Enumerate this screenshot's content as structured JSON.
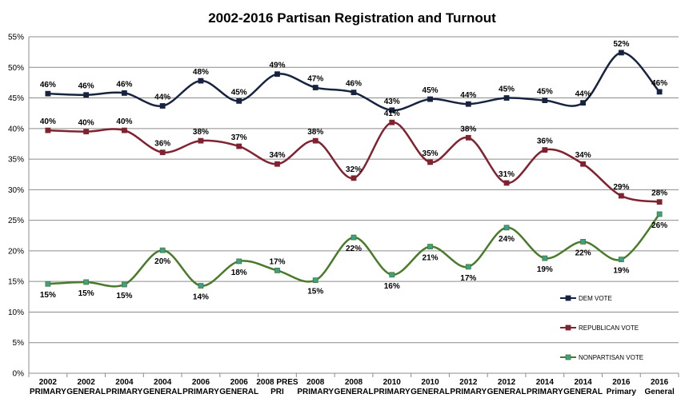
{
  "chart_data": {
    "type": "line",
    "title": "2002-2016 Partisan Registration and Turnout",
    "xlabel": "",
    "ylabel": "",
    "ylim": [
      0,
      55
    ],
    "y_tick_step": 5,
    "y_tick_labels": [
      "0%",
      "5%",
      "10%",
      "15%",
      "20%",
      "25%",
      "30%",
      "35%",
      "40%",
      "45%",
      "50%",
      "55%"
    ],
    "grid": true,
    "legend_position": "bottom-right",
    "categories": [
      [
        "2002",
        "PRIMARY"
      ],
      [
        "2002",
        "GENERAL"
      ],
      [
        "2004",
        "PRIMARY"
      ],
      [
        "2004",
        "GENERAL"
      ],
      [
        "2006",
        "PRIMARY"
      ],
      [
        "2006",
        "GENERAL"
      ],
      [
        "2008 PRES",
        "PRI"
      ],
      [
        "2008",
        "PRIMARY"
      ],
      [
        "2008",
        "GENERAL"
      ],
      [
        "2010",
        "PRIMARY"
      ],
      [
        "2010",
        "GENERAL"
      ],
      [
        "2012",
        "PRIMARY"
      ],
      [
        "2012",
        "GENERAL"
      ],
      [
        "2014",
        "PRIMARY"
      ],
      [
        "2014",
        "GENERAL"
      ],
      [
        "2016",
        "Primary"
      ],
      [
        "2016",
        "General"
      ]
    ],
    "series": [
      {
        "name": "DEM VOTE",
        "color": "#17233f",
        "values": [
          45.7,
          45.5,
          45.8,
          43.7,
          47.8,
          44.5,
          48.9,
          46.7,
          45.9,
          43.0,
          44.8,
          44.0,
          45.0,
          44.6,
          44.2,
          52.4,
          46.0
        ],
        "labels": [
          "46%",
          "46%",
          "46%",
          "44%",
          "48%",
          "45%",
          "49%",
          "47%",
          "46%",
          "43%",
          "45%",
          "44%",
          "45%",
          "45%",
          "44%",
          "52%",
          "46%"
        ],
        "label_side": [
          "above",
          "above",
          "above",
          "above",
          "above",
          "above",
          "above",
          "above",
          "above",
          "above",
          "above",
          "above",
          "above",
          "above",
          "above",
          "above",
          "above"
        ]
      },
      {
        "name": "REPUBLICAN VOTE",
        "color": "#7f2330",
        "values": [
          39.7,
          39.5,
          39.7,
          36.1,
          38.0,
          37.1,
          34.2,
          38.0,
          31.9,
          41.0,
          34.5,
          38.5,
          31.1,
          36.5,
          34.2,
          29.0,
          28.0
        ],
        "labels": [
          "40%",
          "40%",
          "40%",
          "36%",
          "38%",
          "37%",
          "34%",
          "38%",
          "32%",
          "41%",
          "35%",
          "38%",
          "31%",
          "36%",
          "34%",
          "29%",
          "28%"
        ],
        "label_side": [
          "above",
          "above",
          "above",
          "above",
          "above",
          "above",
          "above",
          "above",
          "above",
          "above",
          "above",
          "above",
          "above",
          "above",
          "above",
          "above",
          "above"
        ]
      },
      {
        "name": "NONPARTISAN VOTE",
        "color": "#4a7a2a",
        "marker_color": "#3aa090",
        "values": [
          14.6,
          14.9,
          14.5,
          20.1,
          14.3,
          18.3,
          16.8,
          15.2,
          22.2,
          16.1,
          20.7,
          17.4,
          23.8,
          18.8,
          21.5,
          18.6,
          26.0
        ],
        "labels": [
          "15%",
          "15%",
          "15%",
          "20%",
          "14%",
          "18%",
          "17%",
          "15%",
          "22%",
          "16%",
          "21%",
          "17%",
          "24%",
          "19%",
          "22%",
          "19%",
          "26%"
        ],
        "label_side": [
          "below",
          "below",
          "below",
          "below",
          "below",
          "below",
          "above",
          "below",
          "below",
          "below",
          "below",
          "below",
          "below",
          "below",
          "below",
          "below",
          "below"
        ]
      }
    ]
  }
}
